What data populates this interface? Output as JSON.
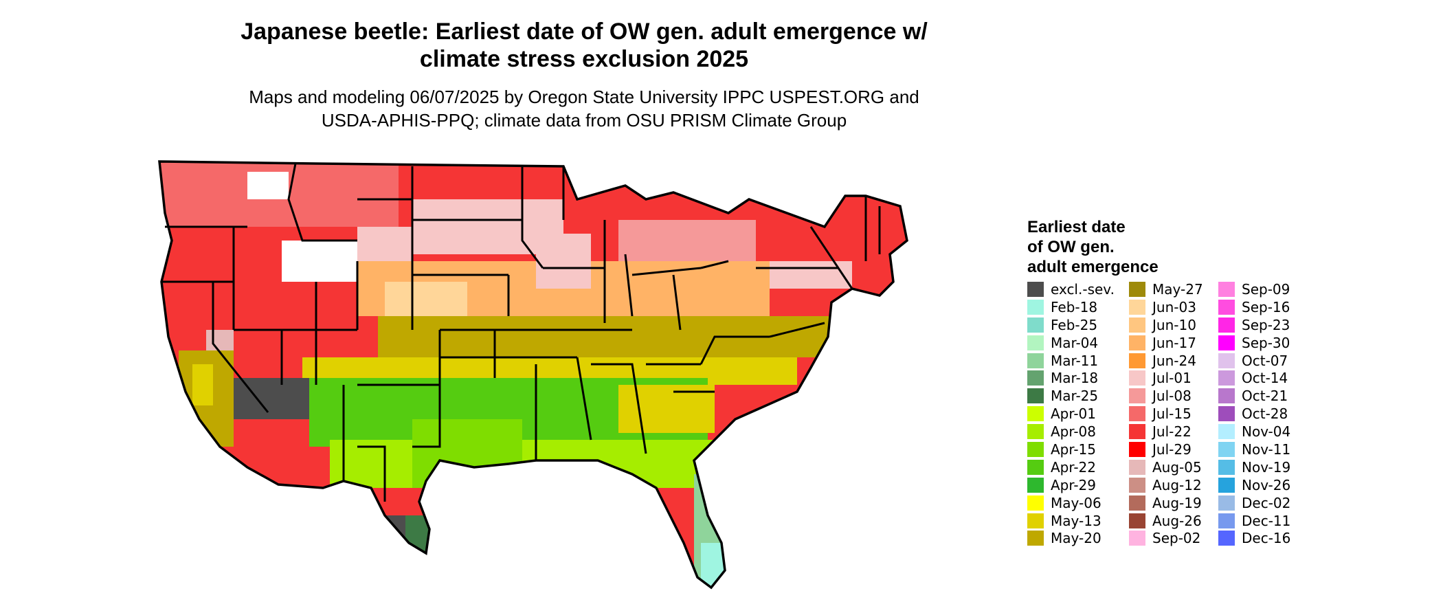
{
  "title_lines": [
    "Japanese beetle: Earliest date of OW gen. adult emergence w/",
    "climate stress exclusion 2025"
  ],
  "subtitle_lines": [
    "Maps and modeling 06/07/2025 by Oregon State University IPPC USPEST.ORG and",
    "USDA-APHIS-PPQ; climate data from OSU PRISM Climate Group"
  ],
  "legend": {
    "title_lines": [
      "Earliest date",
      "of OW gen.",
      "adult emergence"
    ],
    "columns": [
      [
        {
          "label": "excl.-sev.",
          "color": "#4d4d4d"
        },
        {
          "label": "Feb-18",
          "color": "#9ff5e1"
        },
        {
          "label": "Feb-25",
          "color": "#7fdccb"
        },
        {
          "label": "Mar-04",
          "color": "#b2f5c0"
        },
        {
          "label": "Mar-11",
          "color": "#8fd49b"
        },
        {
          "label": "Mar-18",
          "color": "#64a36f"
        },
        {
          "label": "Mar-25",
          "color": "#3d7a45"
        },
        {
          "label": "Apr-01",
          "color": "#ccff00"
        },
        {
          "label": "Apr-08",
          "color": "#a6ed00"
        },
        {
          "label": "Apr-15",
          "color": "#7fdd00"
        },
        {
          "label": "Apr-22",
          "color": "#55cc11"
        },
        {
          "label": "Apr-29",
          "color": "#2eb82e"
        },
        {
          "label": "May-06",
          "color": "#ffff00"
        },
        {
          "label": "May-13",
          "color": "#e0d100"
        },
        {
          "label": "May-20",
          "color": "#bfa800"
        }
      ],
      [
        {
          "label": "May-27",
          "color": "#9e8a0a"
        },
        {
          "label": "Jun-03",
          "color": "#ffd699"
        },
        {
          "label": "Jun-10",
          "color": "#ffc680"
        },
        {
          "label": "Jun-17",
          "color": "#ffb366"
        },
        {
          "label": "Jun-24",
          "color": "#ff9933"
        },
        {
          "label": "Jul-01",
          "color": "#f7c7c7"
        },
        {
          "label": "Jul-08",
          "color": "#f59999"
        },
        {
          "label": "Jul-15",
          "color": "#f56969"
        },
        {
          "label": "Jul-22",
          "color": "#f53535"
        },
        {
          "label": "Jul-29",
          "color": "#ff0000"
        },
        {
          "label": "Aug-05",
          "color": "#e6b8b8"
        },
        {
          "label": "Aug-12",
          "color": "#cc8f85"
        },
        {
          "label": "Aug-19",
          "color": "#b36b5c"
        },
        {
          "label": "Aug-26",
          "color": "#994433"
        },
        {
          "label": "Sep-02",
          "color": "#ffb3e0"
        }
      ],
      [
        {
          "label": "Sep-09",
          "color": "#ff80e0"
        },
        {
          "label": "Sep-16",
          "color": "#ff4de0"
        },
        {
          "label": "Sep-23",
          "color": "#ff26e6"
        },
        {
          "label": "Sep-30",
          "color": "#ff00ff"
        },
        {
          "label": "Oct-07",
          "color": "#e0c2ec"
        },
        {
          "label": "Oct-14",
          "color": "#cc99dd"
        },
        {
          "label": "Oct-21",
          "color": "#b877cc"
        },
        {
          "label": "Oct-28",
          "color": "#9e4dbb"
        },
        {
          "label": "Nov-04",
          "color": "#b3eeff"
        },
        {
          "label": "Nov-11",
          "color": "#80d4f2"
        },
        {
          "label": "Nov-19",
          "color": "#55bde6"
        },
        {
          "label": "Nov-26",
          "color": "#26a3dd"
        },
        {
          "label": "Dec-02",
          "color": "#99bbe6"
        },
        {
          "label": "Dec-11",
          "color": "#7799ee"
        },
        {
          "label": "Dec-16",
          "color": "#5566ff"
        }
      ]
    ]
  }
}
